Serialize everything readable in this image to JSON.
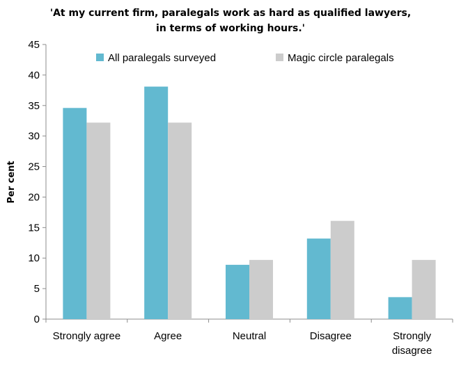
{
  "chart_data": {
    "type": "bar",
    "title_lines": [
      "'At my current firm, paralegals work as hard as qualified lawyers,",
      "in terms of working hours.'"
    ],
    "categories": [
      [
        "Strongly agree"
      ],
      [
        "Agree"
      ],
      [
        "Neutral"
      ],
      [
        "Disagree"
      ],
      [
        "Strongly",
        "disagree"
      ]
    ],
    "series": [
      {
        "name": "All paralegals surveyed",
        "color": "#62b9d0",
        "values": [
          34.6,
          38.1,
          8.9,
          13.2,
          3.6
        ]
      },
      {
        "name": "Magic circle paralegals",
        "color": "#cccccc",
        "values": [
          32.2,
          32.2,
          9.7,
          16.1,
          9.7
        ]
      }
    ],
    "ylabel": "Per cent",
    "ylim": [
      0,
      45
    ],
    "yticks": [
      0,
      5,
      10,
      15,
      20,
      25,
      30,
      35,
      40,
      45
    ],
    "legend_position": "top",
    "grid": false
  }
}
